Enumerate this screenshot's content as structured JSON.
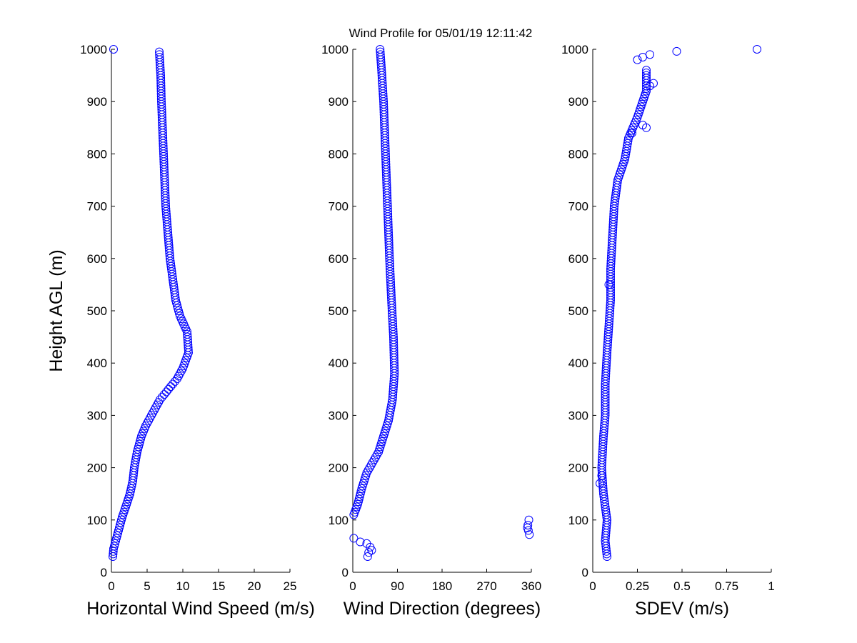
{
  "title": "Wind Profile for  05/01/19 12:11:42",
  "colors": {
    "marker": "#0000ff",
    "axis": "#000000",
    "background": "#ffffff"
  },
  "chart_data": [
    {
      "type": "scatter",
      "name": "speed",
      "xlabel": "Horizontal Wind Speed (m/s)",
      "ylabel": "Height AGL (m)",
      "xlim": [
        0,
        25
      ],
      "ylim": [
        0,
        1000
      ],
      "xticks": [
        0,
        5,
        10,
        15,
        20,
        25
      ],
      "xtick_labels": [
        "0",
        "5",
        "10",
        "15",
        "20",
        "25"
      ],
      "yticks": [
        0,
        100,
        200,
        300,
        400,
        500,
        600,
        700,
        800,
        900,
        1000
      ],
      "ytick_labels": [
        "0",
        "100",
        "200",
        "300",
        "400",
        "500",
        "600",
        "700",
        "800",
        "900",
        "1000"
      ],
      "grid": false,
      "profile": [
        [
          0.2,
          30
        ],
        [
          0.3,
          45
        ],
        [
          0.6,
          60
        ],
        [
          1.0,
          80
        ],
        [
          1.5,
          105
        ],
        [
          2.0,
          125
        ],
        [
          2.6,
          150
        ],
        [
          3.0,
          175
        ],
        [
          3.2,
          200
        ],
        [
          3.6,
          230
        ],
        [
          4.2,
          260
        ],
        [
          4.8,
          280
        ],
        [
          5.6,
          300
        ],
        [
          6.8,
          330
        ],
        [
          8.0,
          350
        ],
        [
          9.2,
          370
        ],
        [
          10.0,
          390
        ],
        [
          10.8,
          420
        ],
        [
          10.6,
          460
        ],
        [
          9.6,
          490
        ],
        [
          9.0,
          520
        ],
        [
          8.6,
          560
        ],
        [
          8.2,
          600
        ],
        [
          7.9,
          650
        ],
        [
          7.6,
          700
        ],
        [
          7.3,
          800
        ],
        [
          7.0,
          900
        ],
        [
          6.9,
          950
        ],
        [
          6.7,
          995
        ]
      ],
      "extra_points": [
        {
          "x": 0.3,
          "y": 1000
        }
      ]
    },
    {
      "type": "scatter",
      "name": "direction",
      "xlabel": "Wind Direction (degrees)",
      "ylabel": "",
      "xlim": [
        0,
        360
      ],
      "ylim": [
        0,
        1000
      ],
      "xticks": [
        0,
        90,
        180,
        270,
        360
      ],
      "xtick_labels": [
        "0",
        "90",
        "180",
        "270",
        "360"
      ],
      "yticks": [
        0,
        100,
        200,
        300,
        400,
        500,
        600,
        700,
        800,
        900,
        1000
      ],
      "ytick_labels": [
        "0",
        "100",
        "200",
        "300",
        "400",
        "500",
        "600",
        "700",
        "800",
        "900",
        "1000"
      ],
      "grid": false,
      "profile": [
        [
          2,
          110
        ],
        [
          10,
          130
        ],
        [
          18,
          160
        ],
        [
          28,
          190
        ],
        [
          40,
          210
        ],
        [
          52,
          230
        ],
        [
          62,
          260
        ],
        [
          72,
          290
        ],
        [
          80,
          330
        ],
        [
          84,
          380
        ],
        [
          82,
          450
        ],
        [
          78,
          520
        ],
        [
          74,
          600
        ],
        [
          70,
          700
        ],
        [
          66,
          800
        ],
        [
          62,
          900
        ],
        [
          58,
          960
        ],
        [
          55,
          1000
        ]
      ],
      "extra_points": [
        {
          "x": 2,
          "y": 65
        },
        {
          "x": 15,
          "y": 58
        },
        {
          "x": 28,
          "y": 55
        },
        {
          "x": 35,
          "y": 48
        },
        {
          "x": 38,
          "y": 42
        },
        {
          "x": 32,
          "y": 38
        },
        {
          "x": 30,
          "y": 30
        },
        {
          "x": 355,
          "y": 100
        },
        {
          "x": 353,
          "y": 90
        },
        {
          "x": 354,
          "y": 80
        },
        {
          "x": 356,
          "y": 72
        },
        {
          "x": 352,
          "y": 85
        }
      ]
    },
    {
      "type": "scatter",
      "name": "sdev",
      "xlabel": "SDEV  (m/s)",
      "ylabel": "",
      "xlim": [
        0,
        1
      ],
      "ylim": [
        0,
        1000
      ],
      "xticks": [
        0,
        0.25,
        0.5,
        0.75,
        1
      ],
      "xtick_labels": [
        "0",
        "0.25",
        "0.5",
        "0.75",
        "1"
      ],
      "grid": false,
      "yticks": [
        0,
        100,
        200,
        300,
        400,
        500,
        600,
        700,
        800,
        900,
        1000
      ],
      "ytick_labels": [
        "0",
        "100",
        "200",
        "300",
        "400",
        "500",
        "600",
        "700",
        "800",
        "900",
        "1000"
      ],
      "profile": [
        [
          0.08,
          30
        ],
        [
          0.07,
          60
        ],
        [
          0.08,
          100
        ],
        [
          0.06,
          150
        ],
        [
          0.05,
          200
        ],
        [
          0.06,
          260
        ],
        [
          0.07,
          300
        ],
        [
          0.07,
          360
        ],
        [
          0.08,
          420
        ],
        [
          0.09,
          470
        ],
        [
          0.1,
          520
        ],
        [
          0.1,
          580
        ],
        [
          0.11,
          640
        ],
        [
          0.12,
          700
        ],
        [
          0.14,
          750
        ],
        [
          0.18,
          790
        ],
        [
          0.2,
          830
        ],
        [
          0.25,
          870
        ],
        [
          0.3,
          920
        ],
        [
          0.3,
          960
        ]
      ],
      "extra_points": [
        {
          "x": 0.04,
          "y": 170
        },
        {
          "x": 0.05,
          "y": 185
        },
        {
          "x": 0.09,
          "y": 550
        },
        {
          "x": 0.22,
          "y": 840
        },
        {
          "x": 0.28,
          "y": 855
        },
        {
          "x": 0.3,
          "y": 850
        },
        {
          "x": 0.32,
          "y": 930
        },
        {
          "x": 0.34,
          "y": 935
        },
        {
          "x": 0.3,
          "y": 945
        },
        {
          "x": 0.25,
          "y": 980
        },
        {
          "x": 0.28,
          "y": 985
        },
        {
          "x": 0.32,
          "y": 990
        },
        {
          "x": 0.47,
          "y": 996
        },
        {
          "x": 0.92,
          "y": 1000
        }
      ]
    }
  ]
}
